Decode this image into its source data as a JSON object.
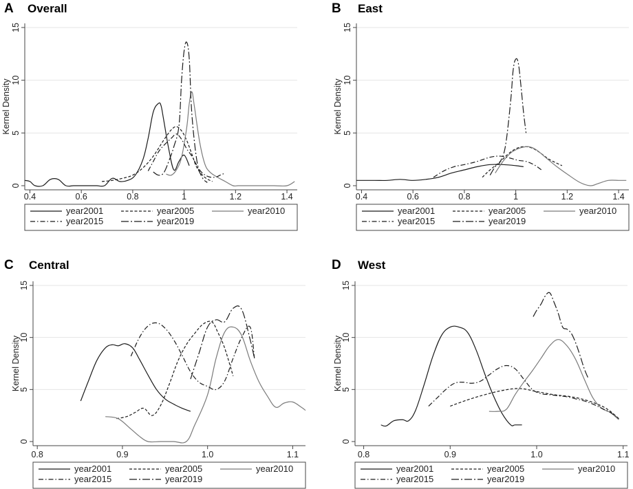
{
  "figure": {
    "legend_entries": [
      "year2001",
      "year2005",
      "year2010",
      "year2015",
      "year2019"
    ],
    "series_styles": [
      {
        "name": "year2001",
        "color": "#1a1a1a",
        "dash": "solid"
      },
      {
        "name": "year2005",
        "color": "#1a1a1a",
        "dash": "short-dash"
      },
      {
        "name": "year2010",
        "color": "#7a7a7a",
        "dash": "solid-gray"
      },
      {
        "name": "year2015",
        "color": "#1a1a1a",
        "dash": "dash-dot"
      },
      {
        "name": "year2019",
        "color": "#1a1a1a",
        "dash": "long-dash-dot"
      }
    ]
  },
  "chart_data": [
    {
      "type": "line",
      "letter": "A",
      "title": "Overall",
      "xlabel": "",
      "ylabel": "Kernel Density",
      "xlim": [
        0.38,
        1.44
      ],
      "ylim": [
        0,
        15
      ],
      "xticks": [
        0.4,
        0.6,
        0.8,
        1.0,
        1.2,
        1.4
      ],
      "xtick_labels": [
        "0.4",
        "0.6",
        "0.8",
        "1",
        "1.2",
        "1.4"
      ],
      "yticks": [
        0,
        5,
        10,
        15
      ],
      "ytick_labels": [
        "0",
        "5",
        "10",
        "15"
      ],
      "grid": true,
      "series": [
        {
          "name": "year2001",
          "x": [
            0.38,
            0.4,
            0.42,
            0.45,
            0.48,
            0.51,
            0.54,
            0.57,
            0.6,
            0.63,
            0.66,
            0.69,
            0.72,
            0.75,
            0.78,
            0.81,
            0.84,
            0.86,
            0.88,
            0.9,
            0.91,
            0.92,
            0.94,
            0.96,
            0.98,
            1.0,
            1.02
          ],
          "y": [
            0.5,
            0.4,
            0.0,
            0.0,
            0.6,
            0.6,
            0.0,
            0.0,
            0.0,
            0.0,
            0.0,
            0.0,
            0.7,
            0.4,
            0.5,
            1.0,
            2.5,
            4.5,
            7.0,
            7.8,
            7.6,
            6.3,
            3.5,
            1.5,
            2.3,
            2.9,
            1.9
          ]
        },
        {
          "name": "year2005",
          "x": [
            0.68,
            0.72,
            0.76,
            0.8,
            0.84,
            0.88,
            0.92,
            0.95,
            0.97,
            0.99,
            1.01,
            1.03,
            1.05,
            1.08,
            1.11
          ],
          "y": [
            0.4,
            0.5,
            0.7,
            1.0,
            1.7,
            2.8,
            4.3,
            5.3,
            5.6,
            5.2,
            4.3,
            3.0,
            1.7,
            0.8,
            0.4
          ]
        },
        {
          "name": "year2010",
          "x": [
            0.93,
            0.95,
            0.97,
            0.99,
            1.01,
            1.02,
            1.03,
            1.04,
            1.06,
            1.08,
            1.1,
            1.13,
            1.16,
            1.19,
            1.21,
            1.25,
            1.3,
            1.35,
            1.4,
            1.43
          ],
          "y": [
            1.1,
            1.0,
            1.5,
            2.7,
            5.5,
            7.8,
            8.9,
            7.5,
            4.2,
            2.1,
            1.3,
            0.8,
            0.4,
            0.0,
            0.0,
            0.0,
            0.0,
            0.0,
            0.0,
            0.4
          ]
        },
        {
          "name": "year2015",
          "x": [
            0.86,
            0.88,
            0.9,
            0.92,
            0.95,
            0.97,
            0.99,
            1.01,
            1.03,
            1.06,
            1.09,
            1.12,
            1.14,
            1.16
          ],
          "y": [
            1.4,
            2.3,
            3.2,
            3.8,
            4.5,
            4.9,
            4.4,
            3.5,
            2.8,
            1.5,
            0.9,
            0.8,
            1.0,
            1.2
          ]
        },
        {
          "name": "year2019",
          "x": [
            0.88,
            0.9,
            0.92,
            0.94,
            0.96,
            0.98,
            0.99,
            1.0,
            1.01,
            1.02,
            1.03,
            1.05,
            1.07,
            1.09
          ],
          "y": [
            1.3,
            1.0,
            1.2,
            2.3,
            3.7,
            5.7,
            10.0,
            12.8,
            13.6,
            12.0,
            6.8,
            2.3,
            0.8,
            0.3
          ]
        }
      ]
    },
    {
      "type": "line",
      "letter": "B",
      "title": "East",
      "xlabel": "",
      "ylabel": "Kernel Density",
      "xlim": [
        0.38,
        1.44
      ],
      "ylim": [
        0,
        15
      ],
      "xticks": [
        0.4,
        0.6,
        0.8,
        1.0,
        1.2,
        1.4
      ],
      "xtick_labels": [
        "0.4",
        "0.6",
        "0.8",
        "1",
        "1.2",
        "1.4"
      ],
      "yticks": [
        0,
        5,
        10,
        15
      ],
      "ytick_labels": [
        "0",
        "5",
        "10",
        "15"
      ],
      "grid": true,
      "series": [
        {
          "name": "year2001",
          "x": [
            0.38,
            0.45,
            0.5,
            0.55,
            0.6,
            0.65,
            0.7,
            0.75,
            0.8,
            0.85,
            0.9,
            0.95,
            1.0,
            1.03
          ],
          "y": [
            0.5,
            0.5,
            0.5,
            0.6,
            0.5,
            0.6,
            0.8,
            1.2,
            1.5,
            1.8,
            2.0,
            2.0,
            1.9,
            1.8
          ]
        },
        {
          "name": "year2005",
          "x": [
            0.87,
            0.9,
            0.94,
            0.97,
            1.0,
            1.03,
            1.06,
            1.09,
            1.13,
            1.18
          ],
          "y": [
            0.8,
            1.5,
            2.3,
            3.0,
            3.5,
            3.7,
            3.6,
            3.2,
            2.5,
            1.9
          ]
        },
        {
          "name": "year2010",
          "x": [
            0.92,
            0.95,
            0.98,
            1.0,
            1.02,
            1.05,
            1.08,
            1.12,
            1.16,
            1.2,
            1.25,
            1.29,
            1.32,
            1.36,
            1.4,
            1.43
          ],
          "y": [
            1.2,
            2.3,
            3.1,
            3.4,
            3.6,
            3.7,
            3.4,
            2.6,
            1.8,
            1.1,
            0.3,
            0.0,
            0.2,
            0.5,
            0.5,
            0.5
          ]
        },
        {
          "name": "year2015",
          "x": [
            0.68,
            0.72,
            0.76,
            0.8,
            0.85,
            0.9,
            0.94,
            0.98,
            1.01,
            1.04,
            1.07,
            1.1
          ],
          "y": [
            0.8,
            1.4,
            1.8,
            2.0,
            2.3,
            2.7,
            2.8,
            2.6,
            2.4,
            2.3,
            2.0,
            1.5
          ]
        },
        {
          "name": "year2019",
          "x": [
            0.9,
            0.92,
            0.94,
            0.96,
            0.98,
            0.99,
            1.0,
            1.01,
            1.02,
            1.03,
            1.04
          ],
          "y": [
            1.0,
            1.8,
            2.3,
            3.8,
            8.0,
            11.0,
            12.0,
            11.6,
            9.5,
            7.0,
            5.0
          ]
        }
      ]
    },
    {
      "type": "line",
      "letter": "C",
      "title": "Central",
      "xlabel": "",
      "ylabel": "Kernel Density",
      "xlim": [
        0.795,
        1.115
      ],
      "ylim": [
        0,
        15
      ],
      "xticks": [
        0.8,
        0.9,
        1.0,
        1.1
      ],
      "xtick_labels": [
        "0.8",
        "0.9",
        "1.0",
        "1.1"
      ],
      "yticks": [
        0,
        5,
        10,
        15
      ],
      "ytick_labels": [
        "0",
        "5",
        "10",
        "15"
      ],
      "grid": true,
      "series": [
        {
          "name": "year2001",
          "x": [
            0.851,
            0.86,
            0.87,
            0.88,
            0.888,
            0.895,
            0.903,
            0.912,
            0.92,
            0.93,
            0.94,
            0.95,
            0.96,
            0.97,
            0.98
          ],
          "y": [
            3.9,
            5.8,
            7.8,
            9.0,
            9.3,
            9.2,
            9.4,
            9.0,
            7.9,
            6.4,
            5.0,
            4.1,
            3.6,
            3.2,
            2.9
          ]
        },
        {
          "name": "year2005",
          "x": [
            0.893,
            0.905,
            0.915,
            0.925,
            0.935,
            0.945,
            0.955,
            0.965,
            0.975,
            0.985,
            0.995,
            1.005,
            1.012,
            1.02,
            1.03
          ],
          "y": [
            2.2,
            2.4,
            2.8,
            3.2,
            2.5,
            3.5,
            5.5,
            7.7,
            9.3,
            10.4,
            11.3,
            11.5,
            10.5,
            9.0,
            6.3
          ]
        },
        {
          "name": "year2010",
          "x": [
            0.88,
            0.895,
            0.91,
            0.92,
            0.93,
            0.945,
            0.96,
            0.975,
            0.985,
            1.0,
            1.01,
            1.02,
            1.03,
            1.04,
            1.05,
            1.06,
            1.07,
            1.08,
            1.09,
            1.1,
            1.11,
            1.115
          ],
          "y": [
            2.4,
            2.2,
            1.2,
            0.5,
            0.0,
            0.0,
            0.0,
            0.0,
            1.6,
            4.5,
            8.0,
            10.5,
            11.0,
            10.2,
            7.8,
            5.8,
            4.4,
            3.3,
            3.7,
            3.8,
            3.3,
            3.0
          ]
        },
        {
          "name": "year2015",
          "x": [
            0.91,
            0.92,
            0.93,
            0.94,
            0.95,
            0.96,
            0.97,
            0.98,
            0.99,
            1.0,
            1.01,
            1.02,
            1.03,
            1.04,
            1.05,
            1.055
          ],
          "y": [
            8.2,
            10.0,
            11.1,
            11.4,
            10.9,
            9.8,
            8.3,
            6.7,
            5.7,
            5.3,
            5.0,
            5.8,
            8.0,
            10.0,
            11.0,
            8.0
          ]
        },
        {
          "name": "year2019",
          "x": [
            0.98,
            0.99,
            1.0,
            1.01,
            1.02,
            1.03,
            1.04,
            1.05,
            1.055
          ],
          "y": [
            6.0,
            8.5,
            11.0,
            11.7,
            11.5,
            12.8,
            12.7,
            9.8,
            8.0
          ]
        }
      ]
    },
    {
      "type": "line",
      "letter": "D",
      "title": "West",
      "xlabel": "",
      "ylabel": "Kernel Density",
      "xlim": [
        0.79,
        1.105
      ],
      "ylim": [
        0,
        15
      ],
      "xticks": [
        0.8,
        0.9,
        1.0,
        1.1
      ],
      "xtick_labels": [
        "0.8",
        "0.9",
        "1.0",
        "1.1"
      ],
      "yticks": [
        0,
        5,
        10,
        15
      ],
      "ytick_labels": [
        "0",
        "5",
        "10",
        "15"
      ],
      "grid": true,
      "series": [
        {
          "name": "year2001",
          "x": [
            0.82,
            0.826,
            0.835,
            0.845,
            0.852,
            0.86,
            0.87,
            0.88,
            0.89,
            0.9,
            0.91,
            0.92,
            0.93,
            0.94,
            0.95,
            0.96,
            0.97,
            0.975,
            0.983
          ],
          "y": [
            1.6,
            1.5,
            2.0,
            2.1,
            2.0,
            3.0,
            5.5,
            8.2,
            10.2,
            11.0,
            11.0,
            10.5,
            8.8,
            6.5,
            4.4,
            2.7,
            1.6,
            1.6,
            1.6
          ]
        },
        {
          "name": "year2005",
          "x": [
            0.9,
            0.92,
            0.94,
            0.96,
            0.98,
            1.0,
            1.02,
            1.04,
            1.06,
            1.08,
            1.095
          ],
          "y": [
            3.4,
            4.0,
            4.5,
            4.9,
            5.1,
            4.8,
            4.5,
            4.3,
            3.9,
            3.2,
            2.2
          ]
        },
        {
          "name": "year2010",
          "x": [
            0.945,
            0.955,
            0.965,
            0.975,
            0.985,
            0.995,
            1.005,
            1.015,
            1.025,
            1.035,
            1.045,
            1.055,
            1.065,
            1.075,
            1.085,
            1.095
          ],
          "y": [
            2.9,
            2.9,
            3.1,
            4.5,
            5.7,
            6.8,
            8.0,
            9.2,
            9.8,
            9.2,
            7.9,
            6.0,
            4.2,
            3.2,
            2.8,
            2.1
          ]
        },
        {
          "name": "year2015",
          "x": [
            0.875,
            0.885,
            0.895,
            0.905,
            0.915,
            0.925,
            0.935,
            0.945,
            0.955,
            0.965,
            0.975,
            0.985,
            0.995,
            1.005,
            1.015,
            1.025,
            1.035,
            1.045,
            1.055,
            1.065,
            1.075,
            1.085,
            1.095
          ],
          "y": [
            3.4,
            4.2,
            5.0,
            5.6,
            5.7,
            5.6,
            5.8,
            6.4,
            7.0,
            7.3,
            7.0,
            6.0,
            5.0,
            4.6,
            4.5,
            4.4,
            4.3,
            4.1,
            3.9,
            3.6,
            3.2,
            2.8,
            2.2
          ]
        },
        {
          "name": "year2019",
          "x": [
            0.996,
            1.0,
            1.005,
            1.01,
            1.015,
            1.02,
            1.025,
            1.03,
            1.035,
            1.04,
            1.045,
            1.05,
            1.055,
            1.06
          ],
          "y": [
            12.0,
            12.6,
            13.2,
            14.0,
            14.3,
            13.4,
            12.3,
            11.0,
            10.8,
            10.4,
            9.5,
            8.3,
            7.0,
            6.0
          ]
        }
      ]
    }
  ]
}
